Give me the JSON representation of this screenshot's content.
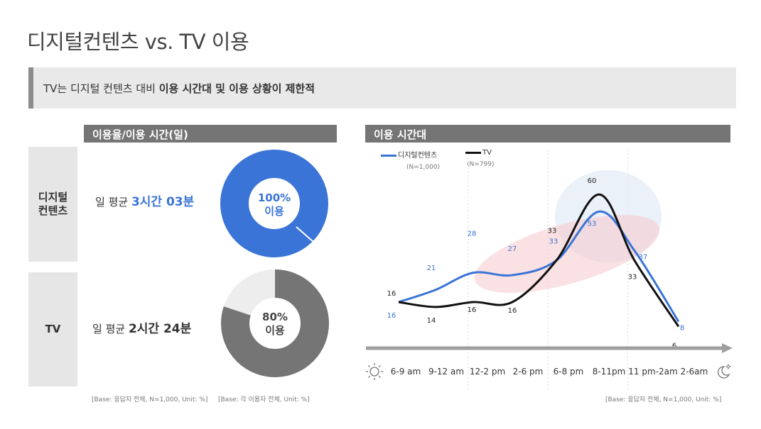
{
  "title": "디지털컨텐츠 vs. TV 이용",
  "banner": {
    "prefix": "TV는 디지털 컨텐츠 대비 ",
    "highlight": "이용 시간대 및 이용 상황이 제한적"
  },
  "left_panel": {
    "header": "이용율/이용 시간(일)",
    "rows": [
      {
        "label_line1": "디지털",
        "label_line2": "컨텐츠",
        "avg_prefix": "일 평균 ",
        "avg_value": "3시간 03분",
        "donut_pct": "100%",
        "donut_text": "이용"
      },
      {
        "label_line1": "TV",
        "label_line2": "",
        "avg_prefix": "일 평균 ",
        "avg_value": "2시간 24분",
        "donut_pct": "80%",
        "donut_text": "이용"
      }
    ],
    "base_notes": [
      "[Base: 응답자 전체, N=1,000, Unit: %]",
      "[Base: 각 이용자 전체, Unit: %]"
    ]
  },
  "right_panel": {
    "header": "이용 시간대",
    "base_note": "[Base: 응답자 전체, N=1,000, Unit: %]",
    "icons": {
      "start": "sun-icon",
      "end": "moon-icon"
    }
  },
  "colors": {
    "digital": "#3a74d7",
    "tv": "#111111",
    "donut_digital": "#3a74d7",
    "donut_tv": "#757575",
    "donut_tv_rest": "#ededed",
    "header_bg": "#757575"
  },
  "chart_data": [
    {
      "type": "pie",
      "title": "",
      "series": [
        {
          "name": "디지털컨텐츠",
          "values": [
            100,
            0
          ]
        }
      ],
      "labels": [
        "100%",
        "이용"
      ]
    },
    {
      "type": "pie",
      "title": "",
      "series": [
        {
          "name": "TV",
          "values": [
            80,
            20
          ]
        }
      ],
      "labels": [
        "80%",
        "이용"
      ]
    },
    {
      "type": "line",
      "title": "이용 시간대",
      "categories": [
        "6-9 am",
        "9-12 am",
        "12-2 pm",
        "2-6 pm",
        "6-8 pm",
        "8-11pm",
        "11 pm-2am",
        "2-6am"
      ],
      "series": [
        {
          "name": "디지털컨텐츠",
          "n": "(N=1,000)",
          "values": [
            16,
            21,
            28,
            27,
            33,
            53,
            37,
            8
          ]
        },
        {
          "name": "TV",
          "n": "(N=799)",
          "values": [
            16,
            14,
            16,
            16,
            33,
            60,
            33,
            6
          ]
        }
      ],
      "xlabel": "",
      "ylabel": "",
      "legend": "top-left",
      "grid": false
    }
  ]
}
